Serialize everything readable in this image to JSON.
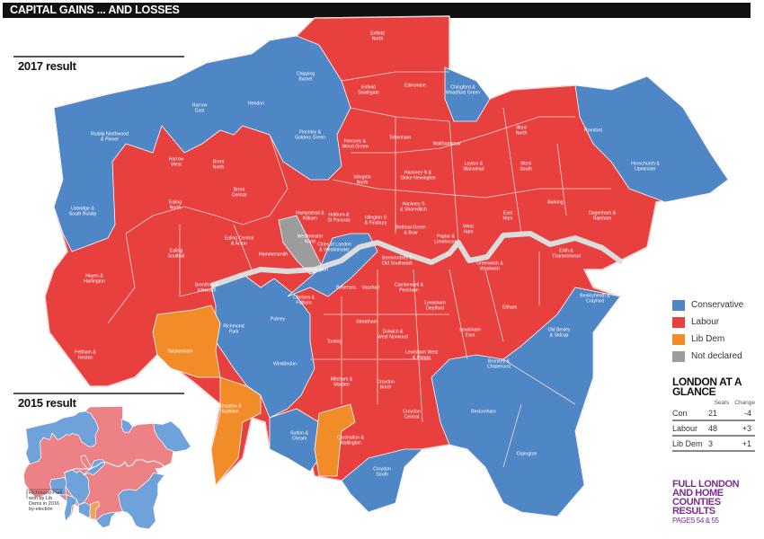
{
  "title": "CAPITAL GAINS ... AND LOSSES",
  "sections": {
    "current": "2017 result",
    "previous": "2015 result"
  },
  "colors": {
    "Conservative": "#4f86c6",
    "Labour": "#e8403f",
    "Lib Dem": "#f28c28",
    "Not declared": "#9c9c9c",
    "accent_purple": "#7b2d8e"
  },
  "legend": [
    {
      "label": "Conservative",
      "color": "#4f86c6"
    },
    {
      "label": "Labour",
      "color": "#e8403f"
    },
    {
      "label": "Lib Dem",
      "color": "#f28c28"
    },
    {
      "label": "Not declared",
      "color": "#9c9c9c"
    }
  ],
  "glance": {
    "title": "LONDON AT A GLANCE",
    "col_seats": "Seats",
    "col_change": "Change",
    "rows": [
      {
        "party": "Con",
        "seats": "21",
        "change": "-4"
      },
      {
        "party": "Labour",
        "seats": "48",
        "change": "+3"
      },
      {
        "party": "Lib Dem",
        "seats": "3",
        "change": "+1"
      }
    ]
  },
  "more_results": {
    "text": "FULL LONDON AND HOME COUNTIES RESULTS",
    "pages": "PAGES 54 & 55"
  },
  "inset_note": "Richmond Park won by Lib Dems in 2016 by-election",
  "constituencies": [
    {
      "name": "Enfield North",
      "party": "Labour"
    },
    {
      "name": "Edmonton",
      "party": "Labour"
    },
    {
      "name": "Enfield Southgate",
      "party": "Labour"
    },
    {
      "name": "Chipping Barnet",
      "party": "Conservative"
    },
    {
      "name": "Chingford & Woodford Green",
      "party": "Conservative"
    },
    {
      "name": "Hendon",
      "party": "Conservative"
    },
    {
      "name": "Harrow East",
      "party": "Conservative"
    },
    {
      "name": "Ruislip Northwood & Pinner",
      "party": "Conservative"
    },
    {
      "name": "Finchley & Golders Green",
      "party": "Conservative"
    },
    {
      "name": "Hornsey & Wood Green",
      "party": "Labour"
    },
    {
      "name": "Tottenham",
      "party": "Labour"
    },
    {
      "name": "Walthamstow",
      "party": "Labour"
    },
    {
      "name": "Leyton & Wanstead",
      "party": "Labour"
    },
    {
      "name": "Ilford North",
      "party": "Labour"
    },
    {
      "name": "Ilford South",
      "party": "Labour"
    },
    {
      "name": "Romford",
      "party": "Conservative"
    },
    {
      "name": "Hornchurch & Upminster",
      "party": "Conservative"
    },
    {
      "name": "Harrow West",
      "party": "Labour"
    },
    {
      "name": "Brent North",
      "party": "Labour"
    },
    {
      "name": "Brent Central",
      "party": "Labour"
    },
    {
      "name": "Islington North",
      "party": "Labour"
    },
    {
      "name": "Hackney N & Stoke Newington",
      "party": "Labour"
    },
    {
      "name": "Hampstead & Kilburn",
      "party": "Labour"
    },
    {
      "name": "Holborn & St Pancras",
      "party": "Labour"
    },
    {
      "name": "Islington S & Finsbury",
      "party": "Labour"
    },
    {
      "name": "Hackney S & Shoreditch",
      "party": "Labour"
    },
    {
      "name": "West Ham",
      "party": "Labour"
    },
    {
      "name": "East Ham",
      "party": "Labour"
    },
    {
      "name": "Barking",
      "party": "Labour"
    },
    {
      "name": "Dagenham & Rainham",
      "party": "Labour"
    },
    {
      "name": "Uxbridge & South Ruislip",
      "party": "Conservative"
    },
    {
      "name": "Ealing North",
      "party": "Labour"
    },
    {
      "name": "Ealing Central & Acton",
      "party": "Labour"
    },
    {
      "name": "Ealing Southall",
      "party": "Labour"
    },
    {
      "name": "Hayes & Harlington",
      "party": "Labour"
    },
    {
      "name": "Brentford & Isleworth",
      "party": "Labour"
    },
    {
      "name": "Feltham & Heston",
      "party": "Labour"
    },
    {
      "name": "Westminster North",
      "party": "Labour"
    },
    {
      "name": "Hammersmith",
      "party": "Labour"
    },
    {
      "name": "Cities of London & Westminster",
      "party": "Conservative"
    },
    {
      "name": "Kensington",
      "party": "Not declared"
    },
    {
      "name": "Bethnal Green & Bow",
      "party": "Labour"
    },
    {
      "name": "Poplar & Limehouse",
      "party": "Labour"
    },
    {
      "name": "Chelsea & Fulham",
      "party": "Conservative"
    },
    {
      "name": "Bermondsey & Old Southwark",
      "party": "Labour"
    },
    {
      "name": "Battersea",
      "party": "Labour"
    },
    {
      "name": "Vauxhall",
      "party": "Labour"
    },
    {
      "name": "Camberwell & Peckham",
      "party": "Labour"
    },
    {
      "name": "Greenwich & Woolwich",
      "party": "Labour"
    },
    {
      "name": "Erith & Thamesmead",
      "party": "Labour"
    },
    {
      "name": "Bexleyheath & Crayford",
      "party": "Conservative"
    },
    {
      "name": "Old Bexley & Sidcup",
      "party": "Conservative"
    },
    {
      "name": "Eltham",
      "party": "Labour"
    },
    {
      "name": "Lewisham Deptford",
      "party": "Labour"
    },
    {
      "name": "Lewisham East",
      "party": "Labour"
    },
    {
      "name": "Lewisham West & Penge",
      "party": "Labour"
    },
    {
      "name": "Dulwich & West Norwood",
      "party": "Labour"
    },
    {
      "name": "Streatham",
      "party": "Labour"
    },
    {
      "name": "Tooting",
      "party": "Labour"
    },
    {
      "name": "Putney",
      "party": "Conservative"
    },
    {
      "name": "Richmond Park",
      "party": "Conservative"
    },
    {
      "name": "Twickenham",
      "party": "Lib Dem"
    },
    {
      "name": "Wimbledon",
      "party": "Conservative"
    },
    {
      "name": "Mitcham & Morden",
      "party": "Labour"
    },
    {
      "name": "Croydon North",
      "party": "Labour"
    },
    {
      "name": "Croydon Central",
      "party": "Labour"
    },
    {
      "name": "Kingston & Surbiton",
      "party": "Lib Dem"
    },
    {
      "name": "Sutton & Cheam",
      "party": "Conservative"
    },
    {
      "name": "Carshalton & Wallington",
      "party": "Lib Dem"
    },
    {
      "name": "Croydon South",
      "party": "Conservative"
    },
    {
      "name": "Beckenham",
      "party": "Conservative"
    },
    {
      "name": "Bromley & Chislehurst",
      "party": "Conservative"
    },
    {
      "name": "Orpington",
      "party": "Conservative"
    }
  ]
}
